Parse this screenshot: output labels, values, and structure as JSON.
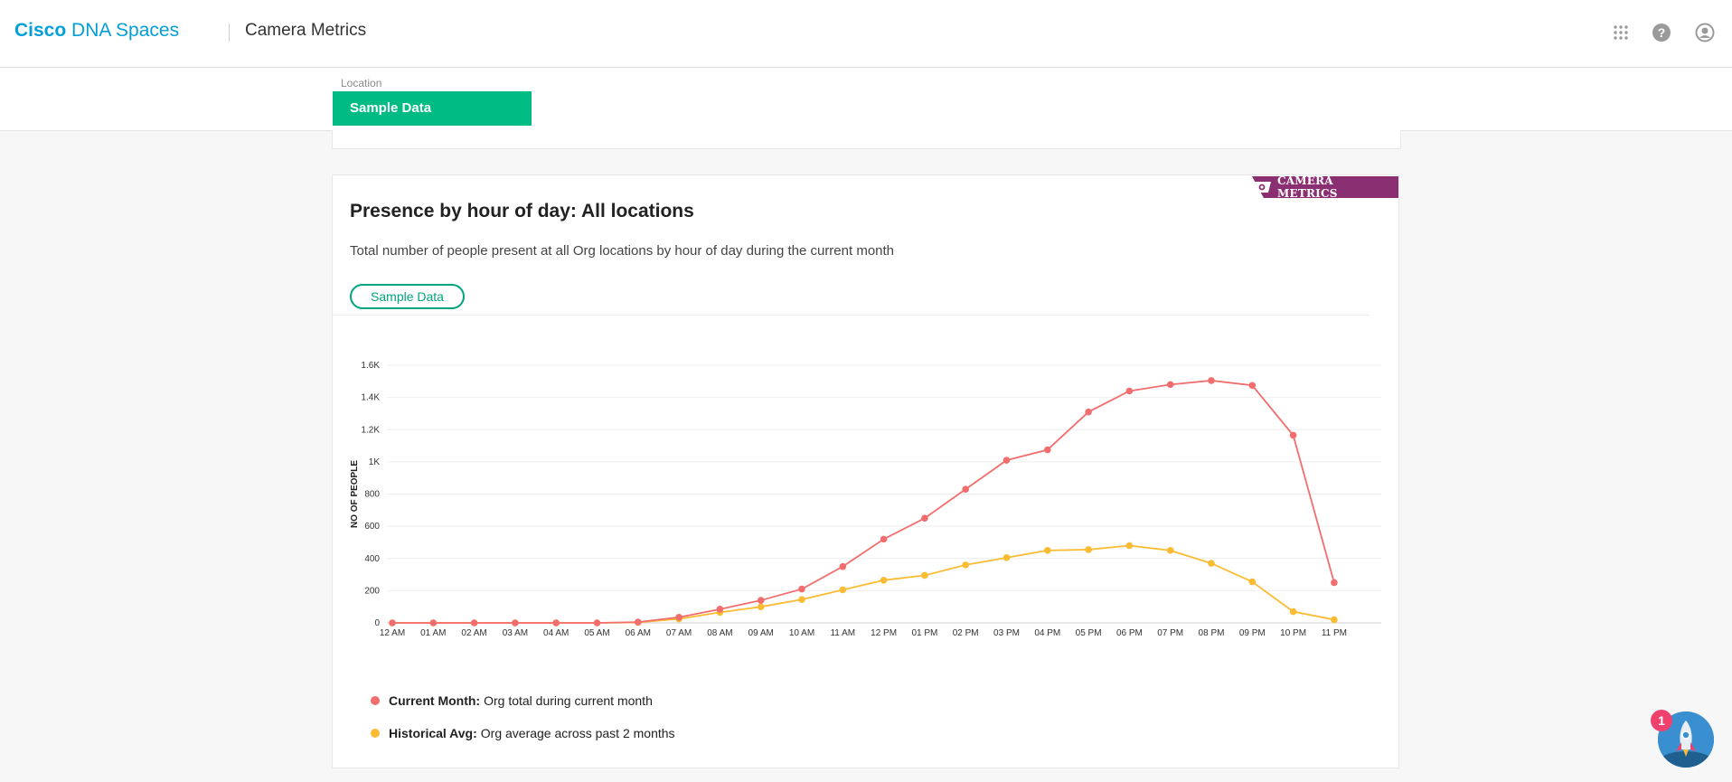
{
  "header": {
    "brand_bold": "Cisco",
    "brand_rest": " DNA Spaces",
    "page_title": "Camera Metrics",
    "icons": [
      "apps-grid-icon",
      "help-icon",
      "user-account-icon"
    ]
  },
  "location": {
    "label": "Location",
    "selected": "Sample Data"
  },
  "card": {
    "badge": "CAMERA METRICS",
    "title": "Presence by hour of day: All locations",
    "description": "Total number of people present at all Org locations by hour of day during the current month",
    "chip": "Sample Data"
  },
  "legend": [
    {
      "name": "Current Month:",
      "desc": "Org total during current month"
    },
    {
      "name": "Historical Avg:",
      "desc": "Org average across past 2 months"
    }
  ],
  "notification_count": "1",
  "colors": {
    "accent_green": "#00bc84",
    "brand_blue": "#049fd9",
    "badge_purple": "#8b2f73",
    "current_month": "#f26d6d",
    "historical_avg": "#fbbc33"
  },
  "chart_data": {
    "type": "line",
    "categories": [
      "12 AM",
      "01 AM",
      "02 AM",
      "03 AM",
      "04 AM",
      "05 AM",
      "06 AM",
      "07 AM",
      "08 AM",
      "09 AM",
      "10 AM",
      "11 AM",
      "12 PM",
      "01 PM",
      "02 PM",
      "03 PM",
      "04 PM",
      "05 PM",
      "06 PM",
      "07 PM",
      "08 PM",
      "09 PM",
      "10 PM",
      "11 PM"
    ],
    "series": [
      {
        "name": "Current Month",
        "color": "#f26d6d",
        "values": [
          0,
          0,
          0,
          0,
          0,
          0,
          5,
          35,
          85,
          140,
          210,
          350,
          520,
          650,
          830,
          1010,
          1075,
          1310,
          1440,
          1480,
          1505,
          1475,
          1165,
          250
        ]
      },
      {
        "name": "Historical Avg",
        "color": "#fbbc33",
        "values": [
          0,
          0,
          0,
          0,
          0,
          0,
          3,
          25,
          65,
          100,
          145,
          205,
          265,
          295,
          360,
          405,
          450,
          455,
          480,
          450,
          370,
          255,
          70,
          20
        ]
      }
    ],
    "ylabel": "NO OF PEOPLE",
    "xlabel": "",
    "ylim": [
      0,
      1600
    ],
    "yticks": [
      0,
      200,
      400,
      600,
      800,
      1000,
      1200,
      1400,
      1600
    ],
    "ytick_labels": [
      "0",
      "200",
      "400",
      "600",
      "800",
      "1K",
      "1.2K",
      "1.4K",
      "1.6K"
    ],
    "grid": true
  }
}
